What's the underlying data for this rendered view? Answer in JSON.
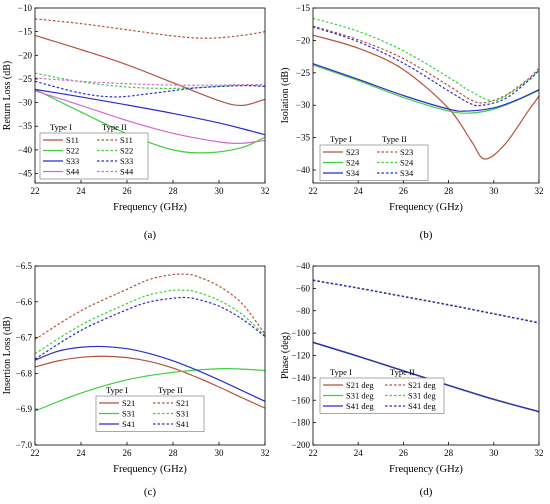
{
  "colors": {
    "red": "#b5533c",
    "green": "#3fcf3f",
    "blue": "#2b2bd0",
    "pink": "#d26ad2"
  },
  "chart_data": [
    {
      "type": "line",
      "caption": "(a)",
      "xlabel": "Frequency (GHz)",
      "ylabel": "Return Loss (dB)",
      "xlim": [
        22,
        32
      ],
      "ylim": [
        -47,
        -10
      ],
      "xticks": [
        22,
        24,
        26,
        28,
        30,
        32
      ],
      "yticks": [
        -45,
        -40,
        -35,
        -30,
        -25,
        -20,
        -15,
        -10
      ],
      "legend": {
        "placement": "bottom-left",
        "groups": [
          "Type I",
          "Type II"
        ]
      },
      "series": [
        {
          "name": "S11",
          "group": "Type I",
          "color": "red",
          "dash": false,
          "x": [
            22,
            24,
            26,
            28,
            30,
            31,
            32
          ],
          "y": [
            -15.8,
            -18.8,
            -22.0,
            -25.8,
            -29.6,
            -30.6,
            -29.3
          ]
        },
        {
          "name": "S22",
          "group": "Type I",
          "color": "green",
          "dash": false,
          "x": [
            22,
            24,
            26,
            28,
            29.5,
            31,
            32
          ],
          "y": [
            -27.2,
            -32.0,
            -36.6,
            -40.0,
            -40.6,
            -39.5,
            -37.3
          ]
        },
        {
          "name": "S33",
          "group": "Type I",
          "color": "blue",
          "dash": false,
          "x": [
            22,
            24,
            26,
            28,
            30,
            31,
            32
          ],
          "y": [
            -27.2,
            -28.8,
            -30.5,
            -32.3,
            -34.3,
            -35.5,
            -36.8
          ]
        },
        {
          "name": "S44",
          "group": "Type I",
          "color": "pink",
          "dash": false,
          "x": [
            22,
            24,
            26,
            28,
            30,
            31,
            32
          ],
          "y": [
            -27.5,
            -30.6,
            -33.8,
            -36.5,
            -38.3,
            -38.6,
            -38.0
          ]
        },
        {
          "name": "S11",
          "group": "Type II",
          "color": "red",
          "dash": true,
          "x": [
            22,
            24,
            26,
            28,
            29.5,
            31,
            32
          ],
          "y": [
            -12.3,
            -13.3,
            -14.6,
            -15.9,
            -16.4,
            -15.8,
            -15.0
          ]
        },
        {
          "name": "S22",
          "group": "Type II",
          "color": "green",
          "dash": true,
          "x": [
            22,
            24,
            26,
            28,
            30,
            31,
            32
          ],
          "y": [
            -23.8,
            -25.6,
            -26.7,
            -27.0,
            -26.6,
            -26.4,
            -26.5
          ]
        },
        {
          "name": "S33",
          "group": "Type II",
          "color": "blue",
          "dash": true,
          "x": [
            22,
            24,
            25.5,
            27,
            29,
            31,
            32
          ],
          "y": [
            -25.5,
            -28.0,
            -28.8,
            -28.1,
            -26.9,
            -26.4,
            -26.6
          ]
        },
        {
          "name": "S44",
          "group": "Type II",
          "color": "pink",
          "dash": true,
          "x": [
            22,
            24,
            26,
            28,
            30,
            31,
            32
          ],
          "y": [
            -24.8,
            -25.5,
            -26.0,
            -26.3,
            -26.3,
            -26.2,
            -26.2
          ]
        }
      ]
    },
    {
      "type": "line",
      "caption": "(b)",
      "xlabel": "Frequency (GHz)",
      "ylabel": "Isolation (dB)",
      "xlim": [
        22,
        32
      ],
      "ylim": [
        -42,
        -15
      ],
      "xticks": [
        22,
        24,
        26,
        28,
        30,
        32
      ],
      "yticks": [
        -40,
        -35,
        -30,
        -25,
        -20,
        -15
      ],
      "legend": {
        "placement": "bottom-left",
        "groups": [
          "Type I",
          "Type II"
        ]
      },
      "series": [
        {
          "name": "S23",
          "group": "Type I",
          "color": "red",
          "dash": false,
          "x": [
            22,
            24,
            26,
            28,
            29,
            29.6,
            30.5,
            31.5,
            32
          ],
          "y": [
            -19.2,
            -21.2,
            -24.5,
            -30.5,
            -35.5,
            -38.3,
            -36.0,
            -31.0,
            -28.6
          ]
        },
        {
          "name": "S24",
          "group": "Type I",
          "color": "green",
          "dash": false,
          "x": [
            22,
            24,
            26,
            28,
            29,
            30,
            31,
            32
          ],
          "y": [
            -23.8,
            -26.2,
            -28.8,
            -30.9,
            -31.2,
            -30.6,
            -29.3,
            -27.7
          ]
        },
        {
          "name": "S34",
          "group": "Type I",
          "color": "blue",
          "dash": false,
          "x": [
            22,
            24,
            26,
            28,
            28.8,
            30,
            31,
            32
          ],
          "y": [
            -23.6,
            -26.0,
            -28.5,
            -30.6,
            -30.9,
            -30.4,
            -29.2,
            -27.6
          ]
        },
        {
          "name": "S23",
          "group": "Type II",
          "color": "red",
          "dash": true,
          "x": [
            22,
            24,
            26,
            28,
            29,
            29.6,
            30.5,
            31.5,
            32
          ],
          "y": [
            -17.8,
            -19.9,
            -22.8,
            -27.0,
            -29.2,
            -29.6,
            -28.5,
            -26.0,
            -24.3
          ]
        },
        {
          "name": "S24",
          "group": "Type II",
          "color": "green",
          "dash": true,
          "x": [
            22,
            24,
            26,
            28,
            29,
            30,
            31,
            32
          ],
          "y": [
            -16.6,
            -18.6,
            -21.6,
            -25.7,
            -27.9,
            -29.3,
            -27.5,
            -24.7
          ]
        },
        {
          "name": "S34",
          "group": "Type II",
          "color": "blue",
          "dash": true,
          "x": [
            22,
            24,
            26,
            28,
            29,
            29.5,
            30.5,
            31.5,
            32
          ],
          "y": [
            -17.9,
            -20.2,
            -23.5,
            -27.8,
            -29.8,
            -30.0,
            -29.0,
            -26.3,
            -24.6
          ]
        }
      ]
    },
    {
      "type": "line",
      "caption": "(c)",
      "xlabel": "Frequency (GHz)",
      "ylabel": "Insertion Loss (dB)",
      "xlim": [
        22,
        32
      ],
      "ylim": [
        -7.0,
        -6.5
      ],
      "xticks": [
        22,
        24,
        26,
        28,
        30,
        32
      ],
      "yticks": [
        -7.0,
        -6.9,
        -6.8,
        -6.7,
        -6.6,
        -6.5
      ],
      "ytick_labels": [
        "-7.0",
        "-6.9",
        "-6.8",
        "-6.7",
        "-6.6",
        "-6.5"
      ],
      "legend": {
        "placement": "bottom-left",
        "groups": [
          "Type I",
          "Type II"
        ]
      },
      "series": [
        {
          "name": "S21",
          "group": "Type I",
          "color": "red",
          "dash": false,
          "x": [
            22,
            23,
            24,
            25,
            26,
            27,
            28,
            29,
            30,
            31,
            32
          ],
          "y": [
            -6.782,
            -6.765,
            -6.755,
            -6.752,
            -6.756,
            -6.767,
            -6.785,
            -6.81,
            -6.838,
            -6.868,
            -6.897
          ]
        },
        {
          "name": "S31",
          "group": "Type I",
          "color": "green",
          "dash": false,
          "x": [
            22,
            24,
            26,
            28,
            30,
            31,
            32
          ],
          "y": [
            -6.905,
            -6.855,
            -6.818,
            -6.797,
            -6.787,
            -6.788,
            -6.792
          ]
        },
        {
          "name": "S41",
          "group": "Type I",
          "color": "blue",
          "dash": false,
          "x": [
            22,
            23,
            24,
            25,
            26,
            27,
            28,
            29,
            30,
            31,
            32
          ],
          "y": [
            -6.763,
            -6.738,
            -6.727,
            -6.725,
            -6.731,
            -6.745,
            -6.765,
            -6.79,
            -6.818,
            -6.848,
            -6.878
          ]
        },
        {
          "name": "S21",
          "group": "Type II",
          "color": "red",
          "dash": true,
          "x": [
            22,
            24,
            26,
            27,
            28,
            28.5,
            29,
            30,
            31,
            32
          ],
          "y": [
            -6.705,
            -6.625,
            -6.565,
            -6.537,
            -6.524,
            -6.523,
            -6.528,
            -6.556,
            -6.605,
            -6.69
          ]
        },
        {
          "name": "S31",
          "group": "Type II",
          "color": "green",
          "dash": true,
          "x": [
            22,
            24,
            26,
            27,
            28,
            28.5,
            29,
            30,
            31,
            32
          ],
          "y": [
            -6.745,
            -6.665,
            -6.605,
            -6.58,
            -6.568,
            -6.568,
            -6.572,
            -6.596,
            -6.635,
            -6.695
          ]
        },
        {
          "name": "S41",
          "group": "Type II",
          "color": "blue",
          "dash": true,
          "x": [
            22,
            24,
            26,
            27,
            28,
            28.5,
            29,
            30,
            31,
            32
          ],
          "y": [
            -6.76,
            -6.68,
            -6.622,
            -6.6,
            -6.59,
            -6.588,
            -6.592,
            -6.612,
            -6.648,
            -6.697
          ]
        }
      ]
    },
    {
      "type": "line",
      "caption": "(d)",
      "xlabel": "Frequency (GHz)",
      "ylabel": "Phase (deg)",
      "xlim": [
        22,
        32
      ],
      "ylim": [
        -200,
        -40
      ],
      "xticks": [
        22,
        24,
        26,
        28,
        30,
        32
      ],
      "yticks": [
        -200,
        -180,
        -160,
        -140,
        -120,
        -100,
        -80,
        -60,
        -40
      ],
      "legend": {
        "placement": "bottom-left",
        "groups": [
          "Type I",
          "Type II"
        ]
      },
      "series": [
        {
          "name": "S21 deg",
          "group": "Type I",
          "color": "red",
          "dash": false,
          "x": [
            22,
            24,
            26,
            28,
            30,
            32
          ],
          "y": [
            -108,
            -120.5,
            -133.5,
            -146.5,
            -159,
            -170
          ]
        },
        {
          "name": "S31 deg",
          "group": "Type I",
          "color": "green",
          "dash": false,
          "x": [
            22,
            24,
            26,
            28,
            30,
            32
          ],
          "y": [
            -108.5,
            -121,
            -134,
            -147,
            -159.5,
            -170.5
          ]
        },
        {
          "name": "S41 deg",
          "group": "Type I",
          "color": "blue",
          "dash": false,
          "x": [
            22,
            24,
            26,
            28,
            30,
            32
          ],
          "y": [
            -108.3,
            -120.7,
            -133.7,
            -146.7,
            -159.2,
            -170.2
          ]
        },
        {
          "name": "S21 deg",
          "group": "Type II",
          "color": "red",
          "dash": true,
          "x": [
            22,
            24,
            26,
            28,
            30,
            32
          ],
          "y": [
            -52.5,
            -59.5,
            -67,
            -74.5,
            -82.5,
            -90.5
          ]
        },
        {
          "name": "S31 deg",
          "group": "Type II",
          "color": "green",
          "dash": true,
          "x": [
            22,
            24,
            26,
            28,
            30,
            32
          ],
          "y": [
            -53,
            -60,
            -67.5,
            -75,
            -83,
            -91
          ]
        },
        {
          "name": "S41 deg",
          "group": "Type II",
          "color": "blue",
          "dash": true,
          "x": [
            22,
            24,
            26,
            28,
            30,
            32
          ],
          "y": [
            -52.8,
            -59.8,
            -67.3,
            -74.8,
            -82.8,
            -90.8
          ]
        }
      ]
    }
  ]
}
